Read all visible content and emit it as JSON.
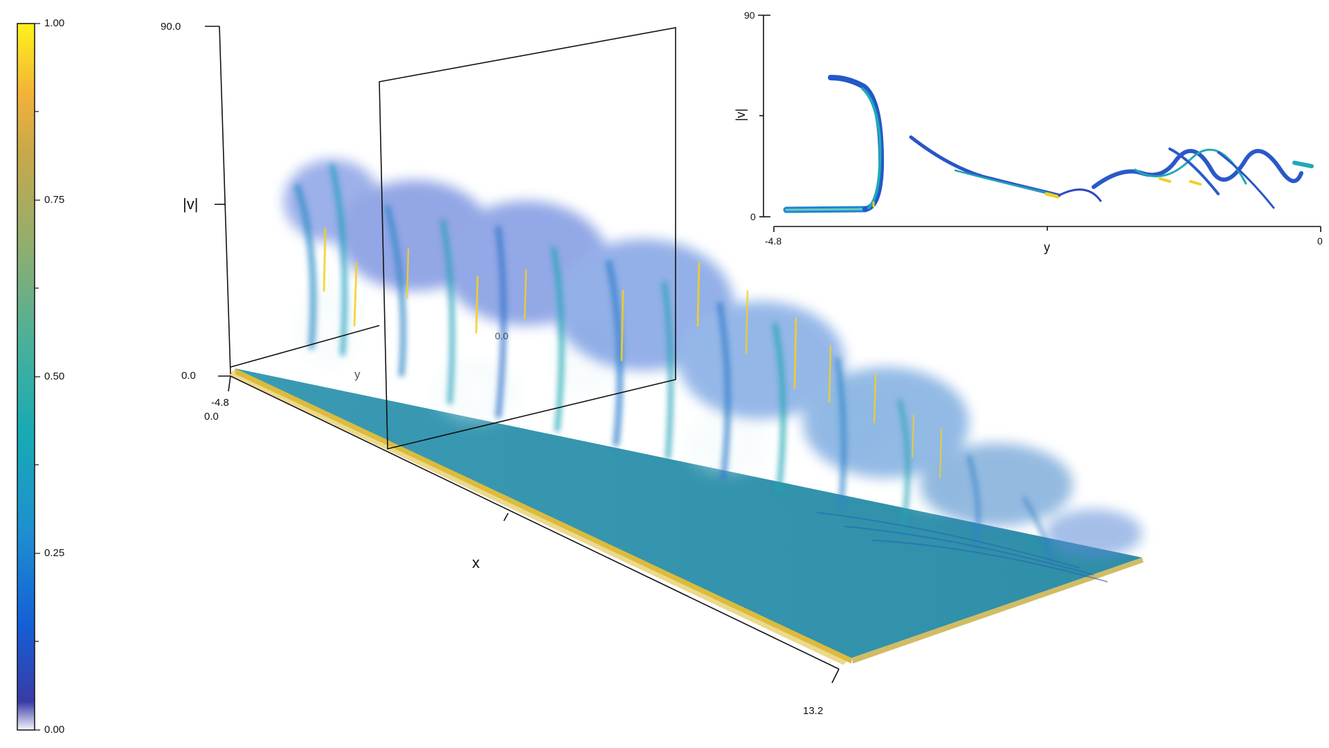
{
  "colorbar": {
    "ticks": [
      "0.00",
      "0.25",
      "0.50",
      "0.75",
      "1.00"
    ],
    "colors": [
      "#f4f4fb",
      "#3a3aa6",
      "#1460d6",
      "#1e8fd0",
      "#18aab4",
      "#4ab09a",
      "#8fae70",
      "#c9a84a",
      "#f2b23a",
      "#fff21a"
    ]
  },
  "main_plot": {
    "z_axis": {
      "label": "|v|",
      "max": "90.0",
      "min": "0.0"
    },
    "y_axis": {
      "label": "y",
      "start": "-4.8",
      "slice_label": "0.0"
    },
    "x_axis": {
      "label": "x",
      "start": "0.0",
      "end": "13.2"
    }
  },
  "inset": {
    "x_label": "y",
    "y_label": "|v|",
    "x_ticks": [
      "-4.8",
      "0"
    ],
    "y_ticks": [
      "0",
      "90"
    ]
  }
}
